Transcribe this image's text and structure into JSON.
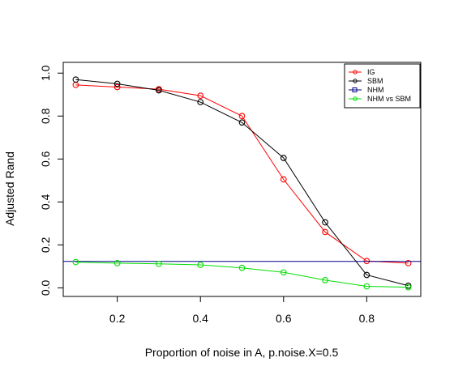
{
  "chart_data": {
    "type": "line",
    "title": "",
    "xlabel": "Proportion of noise in A, p.noise.X=0.5",
    "ylabel": "Adjusted Rand",
    "xlim": [
      0.07,
      0.93
    ],
    "ylim": [
      -0.04,
      1.05
    ],
    "x_ticks": [
      0.2,
      0.4,
      0.6,
      0.8
    ],
    "x_tick_labels": [
      "0.2",
      "0.4",
      "0.6",
      "0.8"
    ],
    "y_ticks": [
      0.0,
      0.2,
      0.4,
      0.6,
      0.8,
      1.0
    ],
    "y_tick_labels": [
      "0.0",
      "0.2",
      "0.4",
      "0.6",
      "0.8",
      "1.0"
    ],
    "grid": false,
    "legend_position": "top-right",
    "x": [
      0.1,
      0.2,
      0.3,
      0.4,
      0.5,
      0.6,
      0.7,
      0.8,
      0.9
    ],
    "series": [
      {
        "name": "IG",
        "color": "#ff0000",
        "marker": "circle",
        "values": [
          0.945,
          0.935,
          0.925,
          0.895,
          0.8,
          0.505,
          0.26,
          0.125,
          0.115
        ]
      },
      {
        "name": "SBM",
        "color": "#000000",
        "marker": "circle",
        "values": [
          0.97,
          0.95,
          0.92,
          0.865,
          0.77,
          0.605,
          0.305,
          0.06,
          0.01
        ]
      },
      {
        "name": "NHM",
        "color": "#00008b",
        "marker": "square",
        "values": [
          0.123,
          0.123,
          0.123,
          0.123,
          0.123,
          0.123,
          0.123,
          0.123,
          0.123
        ],
        "render": "hline"
      },
      {
        "name": "NHM vs SBM",
        "color": "#00dd00",
        "marker": "circle",
        "values": [
          0.12,
          0.115,
          0.112,
          0.107,
          0.093,
          0.072,
          0.036,
          0.007,
          0.003
        ]
      }
    ]
  }
}
